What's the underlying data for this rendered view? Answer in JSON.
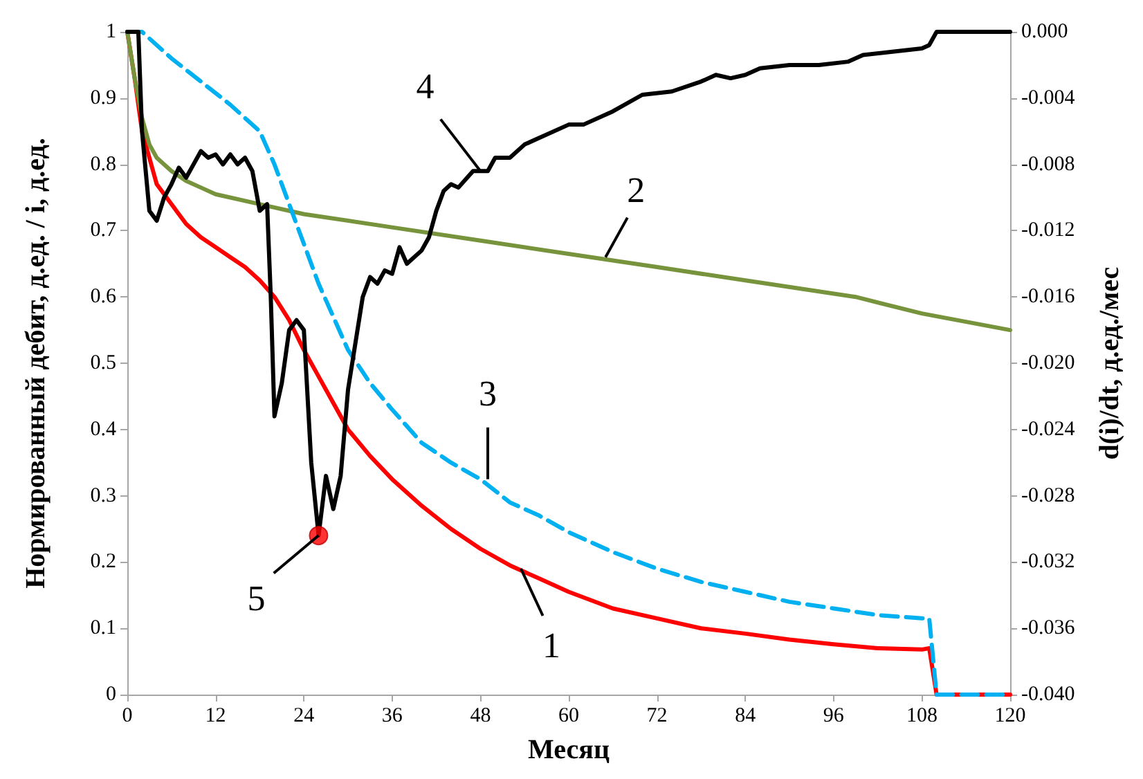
{
  "chart_data": {
    "type": "line",
    "xlabel": "Месяц",
    "ylabel": "Нормированный дебит, д.ед. / i, д.ед.",
    "y2label": "d(i)/dt, д.ед./мес",
    "xlim": [
      0,
      120
    ],
    "xticks": [
      0,
      12,
      24,
      36,
      48,
      60,
      72,
      84,
      96,
      108,
      120
    ],
    "ylim": [
      0,
      1
    ],
    "yticks": [
      0,
      0.1,
      0.2,
      0.3,
      0.4,
      0.5,
      0.6,
      0.7,
      0.8,
      0.9,
      1
    ],
    "y2lim": [
      -0.04,
      0
    ],
    "y2ticks": [
      {
        "value": -0.04,
        "label": "-0.040"
      },
      {
        "value": -0.036,
        "label": "-0.036"
      },
      {
        "value": -0.032,
        "label": "-0.032"
      },
      {
        "value": -0.028,
        "label": "-0.028"
      },
      {
        "value": -0.024,
        "label": "-0.024"
      },
      {
        "value": -0.02,
        "label": "-0.020"
      },
      {
        "value": -0.016,
        "label": "-0.016"
      },
      {
        "value": -0.012,
        "label": "-0.012"
      },
      {
        "value": -0.008,
        "label": "-0.008"
      },
      {
        "value": -0.004,
        "label": "-0.004"
      },
      {
        "value": 0,
        "label": "0.000"
      }
    ],
    "grid": false,
    "marker": "none",
    "series": [
      {
        "color": "#ff0000",
        "x": [
          0,
          1,
          2,
          4,
          6,
          8,
          10,
          12,
          14,
          16,
          18,
          20,
          22,
          24,
          26,
          28,
          30,
          33,
          36,
          40,
          44,
          48,
          52,
          56,
          60,
          66,
          72,
          78,
          84,
          90,
          96,
          102,
          108,
          109,
          110,
          120
        ],
        "values": [
          1.0,
          0.93,
          0.85,
          0.77,
          0.74,
          0.71,
          0.69,
          0.675,
          0.66,
          0.645,
          0.625,
          0.6,
          0.565,
          0.52,
          0.48,
          0.44,
          0.4,
          0.36,
          0.325,
          0.285,
          0.25,
          0.22,
          0.195,
          0.175,
          0.155,
          0.13,
          0.115,
          0.1,
          0.092,
          0.083,
          0.076,
          0.07,
          0.068,
          0.07,
          0.0,
          0.0
        ]
      },
      {
        "color": "#77933c",
        "x": [
          0,
          1,
          2,
          3,
          4,
          6,
          8,
          10,
          12,
          18,
          24,
          36,
          48,
          60,
          72,
          84,
          99,
          108,
          120
        ],
        "values": [
          1.0,
          0.93,
          0.87,
          0.83,
          0.81,
          0.79,
          0.775,
          0.765,
          0.755,
          0.74,
          0.725,
          0.705,
          0.685,
          0.665,
          0.645,
          0.625,
          0.6,
          0.575,
          0.55
        ]
      },
      {
        "color": "#00b0f0",
        "line_style": "dashed",
        "x": [
          0,
          2,
          6,
          10,
          14,
          18,
          20,
          22,
          24,
          26,
          28,
          30,
          33,
          36,
          40,
          44,
          48,
          52,
          56,
          60,
          66,
          72,
          78,
          84,
          90,
          96,
          102,
          108,
          109,
          110,
          120
        ],
        "values": [
          1.0,
          1.0,
          0.96,
          0.925,
          0.89,
          0.85,
          0.8,
          0.74,
          0.68,
          0.62,
          0.57,
          0.52,
          0.47,
          0.43,
          0.38,
          0.35,
          0.325,
          0.29,
          0.27,
          0.245,
          0.215,
          0.19,
          0.17,
          0.155,
          0.14,
          0.13,
          0.12,
          0.115,
          0.115,
          0.0,
          0.0
        ]
      },
      {
        "color": "#000000",
        "axis": "y2",
        "x": [
          0,
          1.5,
          2,
          3,
          4,
          5,
          6,
          7,
          8,
          9,
          10,
          11,
          12,
          13,
          14,
          15,
          16,
          17,
          18,
          19,
          19.5,
          20,
          21,
          22,
          23,
          24,
          25,
          26,
          27,
          28,
          29,
          30,
          31,
          32,
          33,
          34,
          35,
          36,
          37,
          38,
          40,
          41,
          42,
          43,
          44,
          45,
          47,
          48,
          49,
          50,
          52,
          54,
          56,
          60,
          62,
          66,
          70,
          74,
          78,
          80,
          82,
          84,
          86,
          90,
          94,
          98,
          100,
          104,
          108,
          109,
          110,
          120
        ],
        "values": [
          0,
          0,
          -0.006,
          -0.0108,
          -0.0114,
          -0.01,
          -0.0092,
          -0.0082,
          -0.0088,
          -0.008,
          -0.0072,
          -0.0076,
          -0.0074,
          -0.008,
          -0.0074,
          -0.008,
          -0.0076,
          -0.0084,
          -0.0108,
          -0.0104,
          -0.016,
          -0.0232,
          -0.0212,
          -0.018,
          -0.0174,
          -0.018,
          -0.026,
          -0.0304,
          -0.0268,
          -0.0288,
          -0.0268,
          -0.0216,
          -0.0188,
          -0.016,
          -0.0148,
          -0.0152,
          -0.0144,
          -0.0146,
          -0.013,
          -0.014,
          -0.0132,
          -0.0124,
          -0.0108,
          -0.0096,
          -0.0092,
          -0.0094,
          -0.0084,
          -0.0084,
          -0.0084,
          -0.0076,
          -0.0076,
          -0.0068,
          -0.0064,
          -0.0056,
          -0.0056,
          -0.0048,
          -0.0038,
          -0.0036,
          -0.003,
          -0.0026,
          -0.0028,
          -0.0026,
          -0.0022,
          -0.002,
          -0.002,
          -0.0018,
          -0.0014,
          -0.0012,
          -0.001,
          -0.0008,
          0,
          0
        ]
      },
      {
        "type": "scatter",
        "color": "#ff0000",
        "marker": "circle",
        "axis": "y2",
        "x": [
          26
        ],
        "values": [
          -0.0304
        ]
      }
    ],
    "annotations": [
      {
        "text": "1",
        "x": 53.5,
        "y": 0.19
      },
      {
        "text": "2",
        "x": 65,
        "y": 0.66
      },
      {
        "text": "3",
        "x": 49,
        "y": 0.325
      },
      {
        "text": "4",
        "x": 48,
        "y": 0.79
      },
      {
        "text": "5",
        "x": 26,
        "y": 0.24
      }
    ]
  }
}
